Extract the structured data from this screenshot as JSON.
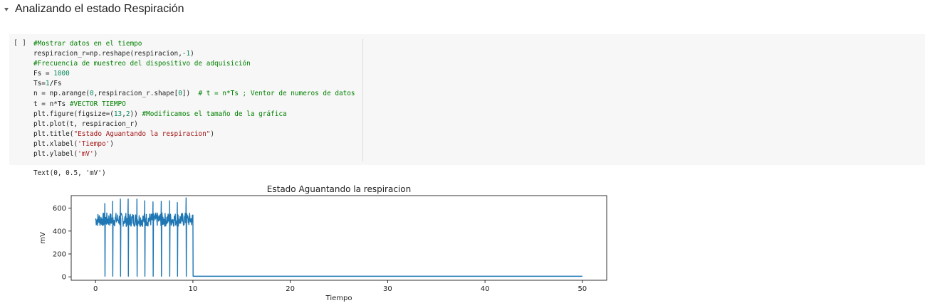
{
  "section": {
    "title": "Analizando el estado Respiración",
    "chevron_icon": "chevron-down-icon"
  },
  "cell": {
    "run_indicator": "[ ]",
    "code_lines": [
      [
        [
          "c",
          "#Mostrar datos en el tiempo"
        ]
      ],
      [
        [
          "",
          "respiracion_r=np.reshape(respiracion,"
        ],
        [
          "n",
          "-1"
        ],
        [
          "",
          ")"
        ]
      ],
      [
        [
          "c",
          "#Frecuencia de muestreo del dispositivo de adquisición"
        ]
      ],
      [
        [
          "",
          "Fs = "
        ],
        [
          "n",
          "1000"
        ]
      ],
      [
        [
          "",
          "Ts="
        ],
        [
          "n",
          "1"
        ],
        [
          "",
          "/Fs"
        ]
      ],
      [
        [
          "",
          "n = np.arange("
        ],
        [
          "n",
          "0"
        ],
        [
          "",
          ",respiracion_r.shape["
        ],
        [
          "n",
          "0"
        ],
        [
          "",
          "])  "
        ],
        [
          "c",
          "# t = n*Ts ; Ventor de numeros de datos"
        ]
      ],
      [
        [
          "",
          "t = n*Ts "
        ],
        [
          "c",
          "#VECTOR TIEMPO"
        ]
      ],
      [
        [
          "",
          "plt.figure(figsize=("
        ],
        [
          "n",
          "13"
        ],
        [
          "",
          ","
        ],
        [
          "n",
          "2"
        ],
        [
          "",
          ")) "
        ],
        [
          "c",
          "#Modificamos el tamaño de la gráfica"
        ]
      ],
      [
        [
          "",
          "plt.plot(t, respiracion_r)"
        ]
      ],
      [
        [
          "",
          "plt.title("
        ],
        [
          "s",
          "\"Estado Aguantando la respiracion\""
        ],
        [
          "",
          ")"
        ]
      ],
      [
        [
          "",
          "plt.xlabel("
        ],
        [
          "s",
          "'Tiempo'"
        ],
        [
          "",
          ")"
        ]
      ],
      [
        [
          "",
          "plt.ylabel("
        ],
        [
          "s",
          "'mV'"
        ],
        [
          "",
          ")"
        ]
      ]
    ]
  },
  "output": {
    "text": "Text(0, 0.5, 'mV')"
  },
  "chart_data": {
    "type": "line",
    "title": "Estado Aguantando la respiracion",
    "xlabel": "Tiempo",
    "ylabel": "mV",
    "xlim": [
      -2.5,
      52.5
    ],
    "ylim": [
      -30,
      710
    ],
    "xticks": [
      0,
      10,
      20,
      30,
      40,
      50
    ],
    "yticks": [
      0,
      200,
      400,
      600
    ],
    "grid": false,
    "series_color": "#1f77b4",
    "series": [
      {
        "baseline": 500,
        "noise_band": [
          440,
          560
        ],
        "signal_range": [
          0,
          10
        ],
        "flat_range": [
          10,
          50
        ],
        "flat_value": 5,
        "spike_times": [
          0.95,
          1.75,
          2.55,
          3.35,
          4.25,
          5.05,
          5.9,
          6.75,
          7.6,
          8.4,
          9.3
        ],
        "spike_peaks": [
          640,
          660,
          680,
          680,
          680,
          665,
          655,
          660,
          665,
          650,
          690
        ],
        "spike_troughs": [
          5,
          5,
          5,
          5,
          5,
          5,
          5,
          5,
          5,
          5,
          5
        ]
      }
    ]
  }
}
